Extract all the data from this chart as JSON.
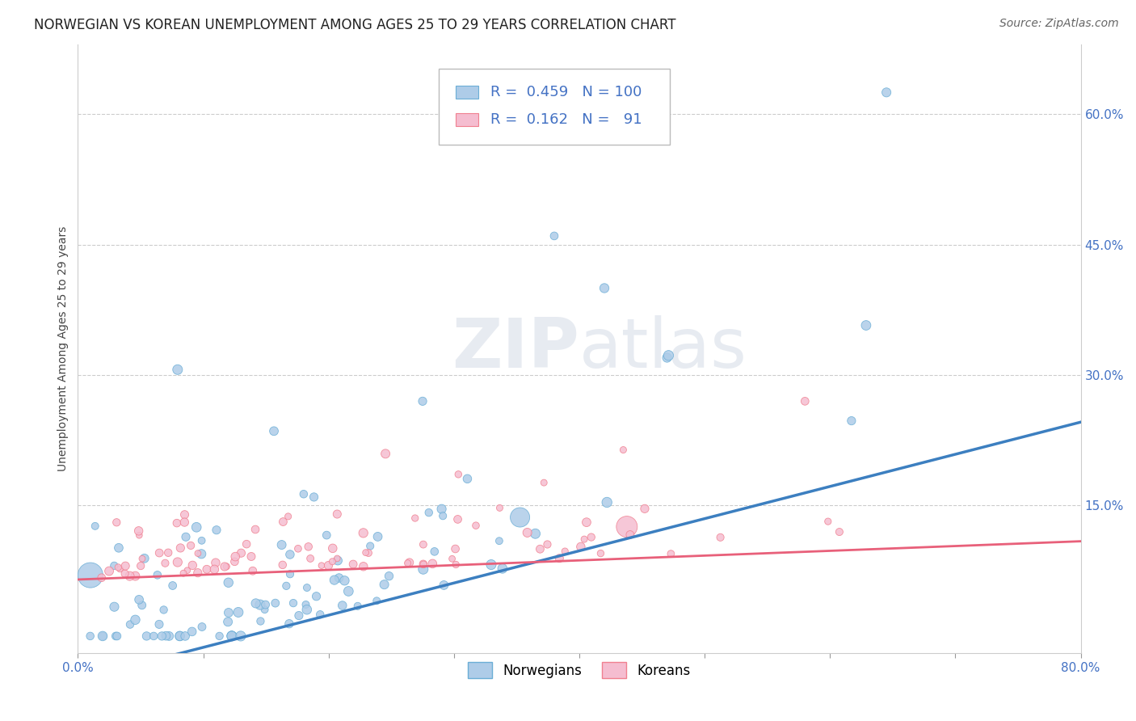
{
  "title": "NORWEGIAN VS KOREAN UNEMPLOYMENT AMONG AGES 25 TO 29 YEARS CORRELATION CHART",
  "source": "Source: ZipAtlas.com",
  "ylabel": "Unemployment Among Ages 25 to 29 years",
  "xlim": [
    0.0,
    0.8
  ],
  "ylim": [
    -0.02,
    0.68
  ],
  "xticks": [
    0.0,
    0.1,
    0.2,
    0.3,
    0.4,
    0.5,
    0.6,
    0.7,
    0.8
  ],
  "xticklabels": [
    "0.0%",
    "",
    "",
    "",
    "",
    "",
    "",
    "",
    "80.0%"
  ],
  "ytick_positions": [
    0.15,
    0.3,
    0.45,
    0.6
  ],
  "ytick_labels": [
    "15.0%",
    "30.0%",
    "45.0%",
    "60.0%"
  ],
  "norwegian_color": "#aecce8",
  "korean_color": "#f5bdd0",
  "norwegian_edge_color": "#6baed6",
  "korean_edge_color": "#f08090",
  "norwegian_line_color": "#3c7fc0",
  "korean_line_color": "#e8607a",
  "legend_R_nor": "0.459",
  "legend_N_nor": "100",
  "legend_R_kor": "0.162",
  "legend_N_kor": "91",
  "watermark_zip": "ZIP",
  "watermark_atlas": "atlas",
  "background_color": "#ffffff",
  "grid_color": "#cccccc",
  "title_fontsize": 12,
  "source_fontsize": 10,
  "axis_label_fontsize": 10,
  "tick_fontsize": 11,
  "legend_fontsize": 13,
  "nor_slope": 0.37,
  "nor_intercept": -0.05,
  "kor_slope": 0.055,
  "kor_intercept": 0.065,
  "tick_color": "#4472c4"
}
